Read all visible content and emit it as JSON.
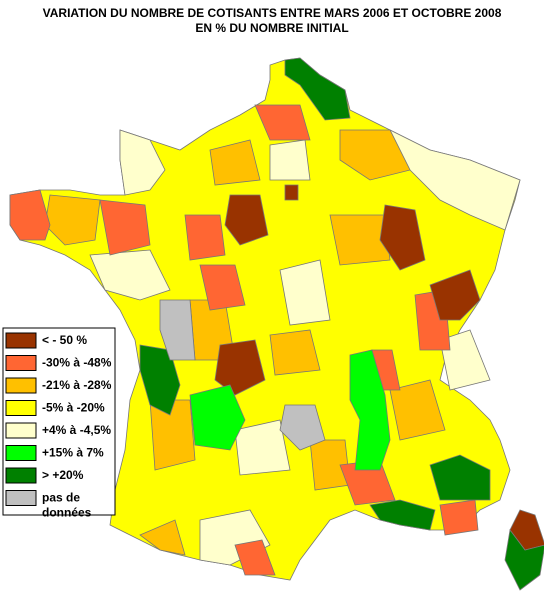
{
  "title": [
    "VARIATION DU NOMBRE DE COTISANTS ENTRE MARS 2006 ET OCTOBRE 2008",
    "EN % DU NOMBRE INITIAL"
  ],
  "legend": [
    {
      "label": [
        "< - 50 %"
      ],
      "color": "#993300"
    },
    {
      "label": [
        "-30% à -48%"
      ],
      "color": "#ff6633"
    },
    {
      "label": [
        "-21% à -28%"
      ],
      "color": "#ffc000"
    },
    {
      "label": [
        "-5% à -20%"
      ],
      "color": "#ffff00"
    },
    {
      "label": [
        "+4% à -4,5%"
      ],
      "color": "#ffffcc"
    },
    {
      "label": [
        "+15% à 7%"
      ],
      "color": "#00ff00"
    },
    {
      "label": [
        "> +20%"
      ],
      "color": "#008000"
    },
    {
      "label": [
        "pas de",
        "données"
      ],
      "color": "#c0c0c0"
    }
  ]
}
